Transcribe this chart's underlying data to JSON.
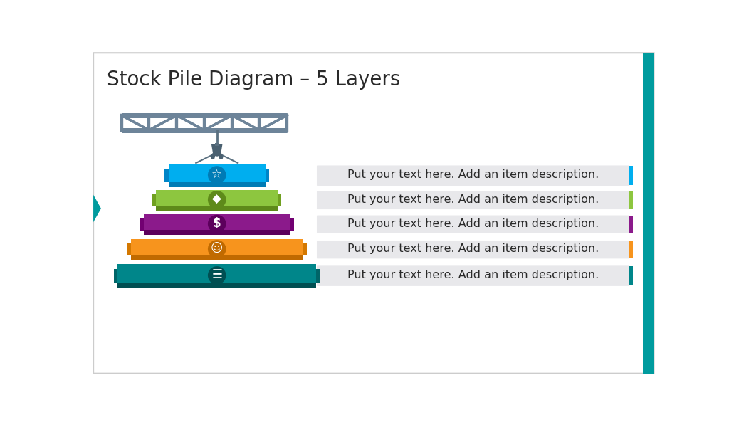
{
  "title": "Stock Pile Diagram – 5 Layers",
  "title_fontsize": 20,
  "background_color": "#ffffff",
  "teal_accent": "#009B9E",
  "layers": [
    {
      "color": "#00AEEF",
      "dark": "#007BB5",
      "shadow": "#0085C7",
      "label": "Put your text here. Add an item description.",
      "accent": "#00AEEF"
    },
    {
      "color": "#8DC63F",
      "dark": "#5E8A1A",
      "shadow": "#70A020",
      "label": "Put your text here. Add an item description.",
      "accent": "#8DC63F"
    },
    {
      "color": "#8B1A8B",
      "dark": "#5C005C",
      "shadow": "#720072",
      "label": "Put your text here. Add an item description.",
      "accent": "#8B1A8B"
    },
    {
      "color": "#F7941D",
      "dark": "#C06A00",
      "shadow": "#D47800",
      "label": "Put your text here. Add an item description.",
      "accent": "#F7941D"
    },
    {
      "color": "#00868A",
      "dark": "#004F52",
      "shadow": "#006568",
      "label": "Put your text here. Add an item description.",
      "accent": "#00868A"
    }
  ],
  "text_box_color": "#E8E8EB",
  "text_color": "#2a2a2a",
  "text_fontsize": 11.5,
  "crane_color": "#5A7080",
  "crane_light": "#6D8499",
  "hook_color": "#4A6070"
}
